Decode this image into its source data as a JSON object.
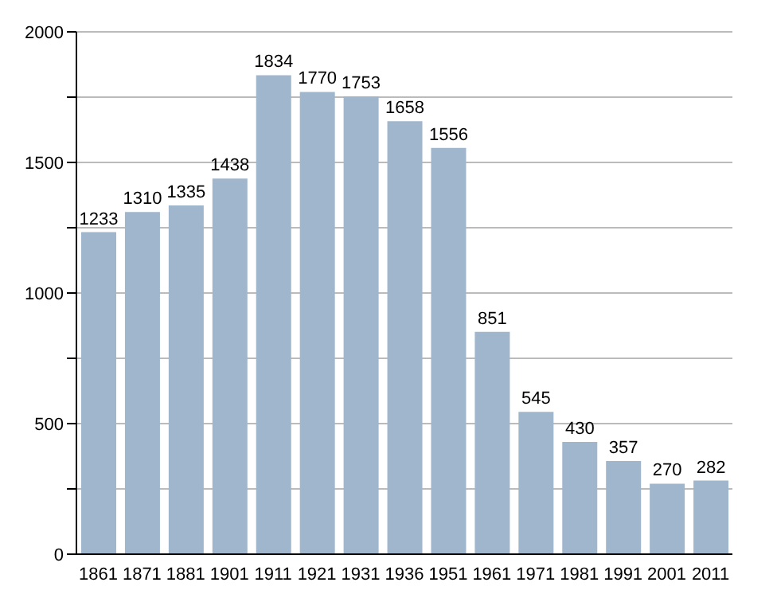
{
  "chart_data": {
    "type": "bar",
    "categories": [
      "1861",
      "1871",
      "1881",
      "1901",
      "1911",
      "1921",
      "1931",
      "1936",
      "1951",
      "1961",
      "1971",
      "1981",
      "1991",
      "2001",
      "2011"
    ],
    "values": [
      1233,
      1310,
      1335,
      1438,
      1834,
      1770,
      1753,
      1658,
      1556,
      851,
      545,
      430,
      357,
      270,
      282
    ],
    "color": "#a0b6cd",
    "ylim": [
      0,
      2000
    ],
    "yticks": [
      0,
      {
        "value": 250,
        "label": null
      },
      500,
      {
        "value": 750,
        "label": null
      },
      1000,
      {
        "value": 1250,
        "label": null
      },
      1500,
      {
        "value": 1750,
        "label": null
      },
      2000
    ],
    "grid": "y",
    "data_labels": true
  }
}
